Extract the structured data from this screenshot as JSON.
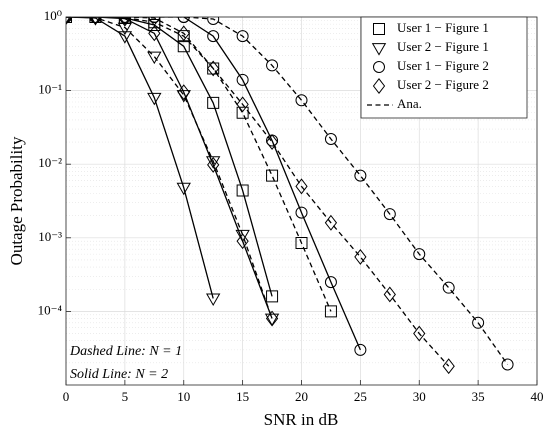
{
  "chart_data": {
    "type": "line",
    "xlabel": "SNR in dB",
    "ylabel": "Outage Probability",
    "x": [
      0,
      2.5,
      5,
      7.5,
      10,
      12.5,
      15,
      17.5,
      20,
      22.5,
      25,
      27.5,
      30,
      32.5,
      35,
      37.5
    ],
    "xlim": [
      0,
      40
    ],
    "xticks": [
      0,
      5,
      10,
      15,
      20,
      25,
      30,
      35,
      40
    ],
    "ylim": [
      1e-05,
      1
    ],
    "yticks": [
      {
        "value": 0.0001,
        "label": "10⁻⁴"
      },
      {
        "value": 0.001,
        "label": "10⁻³"
      },
      {
        "value": 0.01,
        "label": "10⁻²"
      },
      {
        "value": 0.1,
        "label": "10⁻¹"
      },
      {
        "value": 1,
        "label": "10⁰"
      }
    ],
    "log_y": true,
    "grid": true,
    "minor_grid": true,
    "legend": "upper right",
    "legend_line_label": "Ana.",
    "annotations": [
      "Dashed Line: N = 1",
      "Solid Line: N = 2"
    ],
    "series": [
      {
        "name": "User 1 − Figure 1",
        "marker": "square",
        "color": "#000000",
        "curves": [
          {
            "line": "dashed",
            "values": [
              1,
              1,
              0.98,
              0.85,
              0.55,
              0.2,
              0.05,
              0.007,
              0.00085,
              0.0001,
              null,
              null,
              null,
              null,
              null,
              null
            ]
          },
          {
            "line": "solid",
            "values": [
              1,
              1,
              0.97,
              0.78,
              0.4,
              0.068,
              0.0044,
              0.00016,
              null,
              null,
              null,
              null,
              null,
              null,
              null,
              null
            ]
          }
        ]
      },
      {
        "name": "User 2 − Figure 1",
        "marker": "triangle-down",
        "color": "#000000",
        "curves": [
          {
            "line": "dashed",
            "values": [
              1,
              0.98,
              0.72,
              0.29,
              0.087,
              0.011,
              0.0011,
              8e-05,
              null,
              null,
              null,
              null,
              null,
              null,
              null,
              null
            ]
          },
          {
            "line": "solid",
            "values": [
              1,
              0.97,
              0.55,
              0.08,
              0.0048,
              0.00015,
              null,
              null,
              null,
              null,
              null,
              null,
              null,
              null,
              null,
              null
            ]
          }
        ]
      },
      {
        "name": "User 1 − Figure 2",
        "marker": "circle",
        "color": "#000000",
        "curves": [
          {
            "line": "dashed",
            "values": [
              1,
              1,
              1,
              1,
              1,
              0.94,
              0.55,
              0.22,
              0.074,
              0.022,
              0.007,
              0.0021,
              0.0006,
              0.00021,
              7e-05,
              1.9e-05
            ]
          },
          {
            "line": "solid",
            "values": [
              1,
              1,
              1,
              1,
              1,
              0.55,
              0.14,
              0.021,
              0.0022,
              0.00025,
              3e-05,
              null,
              null,
              null,
              null,
              null
            ]
          }
        ]
      },
      {
        "name": "User 2 − Figure 2",
        "marker": "diamond",
        "color": "#000000",
        "curves": [
          {
            "line": "dashed",
            "values": [
              1,
              1,
              1,
              0.97,
              0.6,
              0.2,
              0.065,
              0.02,
              0.005,
              0.0016,
              0.00055,
              0.00017,
              5e-05,
              1.8e-05,
              null,
              null
            ]
          },
          {
            "line": "solid",
            "values": [
              1,
              1,
              0.95,
              0.6,
              0.095,
              0.0098,
              0.0009,
              8e-05,
              null,
              null,
              null,
              null,
              null,
              null,
              null,
              null
            ]
          }
        ]
      }
    ]
  }
}
